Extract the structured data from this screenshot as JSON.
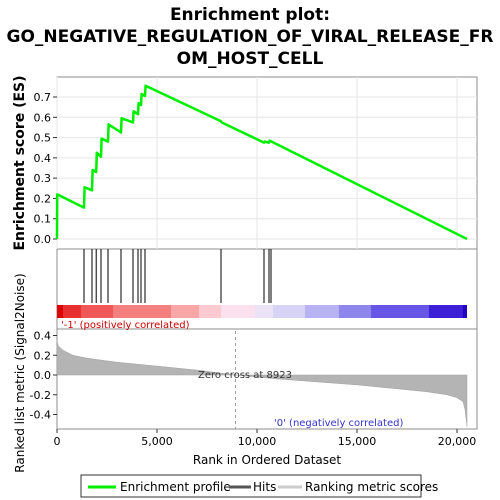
{
  "chart_data": {
    "type": "line",
    "title_lines": [
      "Enrichment plot:",
      "GO_NEGATIVE_REGULATION_OF_VIRAL_RELEASE_FR",
      "OM_HOST_CELL"
    ],
    "es_panel": {
      "ylabel": "Enrichment score (ES)",
      "ylim": [
        0,
        0.7
      ],
      "yticks": [
        "0.0",
        "0.1",
        "0.2",
        "0.3",
        "0.4",
        "0.5",
        "0.6",
        "0.7"
      ],
      "series": [
        {
          "name": "Enrichment profile",
          "color": "#00ee00",
          "x": [
            0,
            10,
            1350,
            1380,
            1750,
            1780,
            1960,
            1990,
            2200,
            2230,
            2550,
            2580,
            3200,
            3230,
            3800,
            3830,
            4050,
            4080,
            4200,
            4230,
            4400,
            4430,
            8200,
            8230,
            10350,
            10380,
            10600,
            10630,
            20500
          ],
          "y": [
            0.0,
            0.22,
            0.155,
            0.255,
            0.24,
            0.34,
            0.33,
            0.425,
            0.405,
            0.495,
            0.48,
            0.565,
            0.525,
            0.595,
            0.575,
            0.63,
            0.615,
            0.67,
            0.66,
            0.715,
            0.705,
            0.755,
            0.58,
            0.575,
            0.475,
            0.48,
            0.475,
            0.485,
            0.0
          ]
        }
      ]
    },
    "hits": {
      "name": "Hits",
      "positions": [
        1350,
        1750,
        1960,
        2200,
        2550,
        3200,
        3800,
        4050,
        4200,
        4400,
        8200,
        10350,
        10600,
        10700
      ]
    },
    "metric_panel": {
      "ylabel": "Ranked list metric (Signal2Noise)",
      "ylim": [
        -0.5,
        0.45
      ],
      "yticks": [
        "-0.4",
        "-0.2",
        "0.0",
        "0.2",
        "0.4"
      ],
      "series_name": "Ranking metric scores",
      "x": [
        0,
        50,
        300,
        800,
        1500,
        3000,
        5000,
        7000,
        8923,
        11000,
        13000,
        15000,
        17000,
        18500,
        19500,
        20000,
        20300,
        20400,
        20500
      ],
      "y": [
        0.35,
        0.3,
        0.25,
        0.2,
        0.17,
        0.13,
        0.09,
        0.05,
        0.0,
        -0.04,
        -0.07,
        -0.1,
        -0.14,
        -0.17,
        -0.2,
        -0.23,
        -0.27,
        -0.35,
        -0.52
      ],
      "zero_cross": 8923,
      "zero_cross_label": "Zero cross at 8923",
      "pos_label": "'-1' (positively correlated)",
      "neg_label": "'0' (negatively correlated)"
    },
    "xaxis": {
      "label": "Rank in Ordered Dataset",
      "xlim": [
        0,
        21000
      ],
      "ticks": [
        0,
        5000,
        10000,
        15000,
        20000
      ],
      "tick_labels": [
        "0",
        "5,000",
        "10,000",
        "15,000",
        "20,000"
      ]
    },
    "heat_bar": {
      "colors": [
        "#dd0000",
        "#e83030",
        "#f05858",
        "#f47f7f",
        "#f8a6a6",
        "#fbc9cf",
        "#fbe0ee",
        "#ebe3f5",
        "#d6d3f5",
        "#b7b3f2",
        "#8f86ec",
        "#6755e6",
        "#3c1fd6",
        "#2000c4"
      ],
      "stops": [
        0,
        300,
        1200,
        2800,
        5700,
        7100,
        8200,
        9900,
        10800,
        12400,
        14100,
        15700,
        18600,
        20300,
        20500
      ]
    },
    "legend": {
      "items": [
        "Enrichment profile",
        "Hits",
        "Ranking metric scores"
      ],
      "colors": [
        "#00ee00",
        "#555555",
        "#cccccc"
      ]
    }
  }
}
